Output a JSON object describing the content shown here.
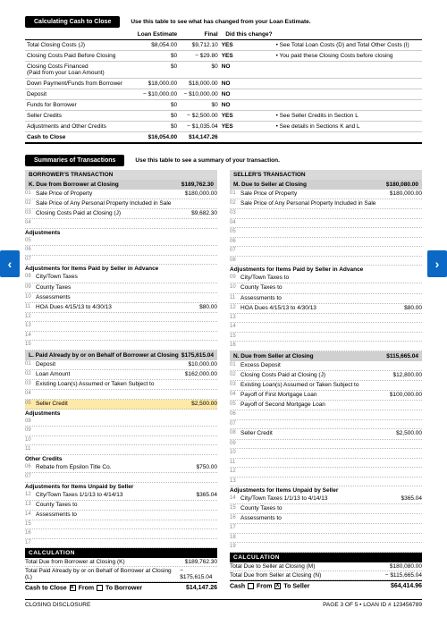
{
  "calc_cash": {
    "title": "Calculating Cash to Close",
    "subtitle": "Use this table to see what has changed from your Loan Estimate.",
    "headers": [
      "",
      "Loan Estimate",
      "Final",
      "Did this change?"
    ],
    "rows": [
      {
        "label": "Total Closing Costs (J)",
        "est": "$8,054.00",
        "final": "$9,712.10",
        "chg": "YES",
        "note": "• See Total Loan Costs (D) and Total Other Costs (I)"
      },
      {
        "label": "Closing Costs Paid Before Closing",
        "est": "$0",
        "final": "− $29.80",
        "chg": "YES",
        "note": "• You paid these Closing Costs before closing"
      },
      {
        "label": "Closing Costs Financed\n(Paid from your Loan Amount)",
        "est": "$0",
        "final": "$0",
        "chg": "NO",
        "note": ""
      },
      {
        "label": "Down Payment/Funds from Borrower",
        "est": "$18,000.00",
        "final": "$18,000.00",
        "chg": "NO",
        "note": ""
      },
      {
        "label": "Deposit",
        "est": "− $10,000.00",
        "final": "− $10,000.00",
        "chg": "NO",
        "note": ""
      },
      {
        "label": "Funds for Borrower",
        "est": "$0",
        "final": "$0",
        "chg": "NO",
        "note": ""
      },
      {
        "label": "Seller Credits",
        "est": "$0",
        "final": "− $2,500.00",
        "chg": "YES",
        "note": "• See Seller Credits in Section L"
      },
      {
        "label": "Adjustments and Other Credits",
        "est": "$0",
        "final": "− $1,035.04",
        "chg": "YES",
        "note": "• See details in Sections K and L"
      }
    ],
    "total": {
      "label": "Cash to Close",
      "est": "$16,054.00",
      "final": "$14,147.26"
    }
  },
  "summaries": {
    "title": "Summaries of Transactions",
    "subtitle": "Use this table to see a summary of your transaction.",
    "borrower": {
      "title": "BORROWER'S TRANSACTION",
      "K": {
        "title": "K. Due from Borrower at Closing",
        "amount": "$189,762.30",
        "rows": [
          {
            "n": "01",
            "lbl": "Sale Price of Property",
            "amt": "$180,000.00"
          },
          {
            "n": "02",
            "lbl": "Sale Price of Any Personal Property Included in Sale",
            "amt": ""
          },
          {
            "n": "03",
            "lbl": "Closing Costs Paid at Closing (J)",
            "amt": "$9,682.30"
          },
          {
            "n": "04",
            "lbl": "",
            "amt": ""
          }
        ],
        "adj": "Adjustments",
        "adjrows": [
          {
            "n": "05"
          },
          {
            "n": "06"
          },
          {
            "n": "07"
          }
        ],
        "adj2": "Adjustments for Items Paid by Seller in Advance",
        "adj2rows": [
          {
            "n": "08",
            "lbl": "City/Town Taxes",
            "to": "to",
            "amt": ""
          },
          {
            "n": "09",
            "lbl": "County Taxes",
            "to": "to",
            "amt": ""
          },
          {
            "n": "10",
            "lbl": "Assessments",
            "to": "to",
            "amt": ""
          },
          {
            "n": "11",
            "lbl": "HOA Dues      4/15/13  to  4/30/13",
            "to": "",
            "amt": "$80.00"
          },
          {
            "n": "12"
          },
          {
            "n": "13"
          },
          {
            "n": "14"
          },
          {
            "n": "15"
          }
        ]
      },
      "L": {
        "title": "L. Paid Already by or on Behalf of Borrower at Closing",
        "amount": "$175,615.04",
        "rows": [
          {
            "n": "01",
            "lbl": "Deposit",
            "amt": "$10,000.00"
          },
          {
            "n": "02",
            "lbl": "Loan Amount",
            "amt": "$162,000.00"
          },
          {
            "n": "03",
            "lbl": "Existing Loan(s) Assumed or Taken Subject to",
            "amt": ""
          },
          {
            "n": "04",
            "lbl": "",
            "amt": ""
          },
          {
            "n": "05",
            "lbl": "Seller Credit",
            "amt": "$2,500.00",
            "hl": true
          }
        ],
        "other": "Other Credits",
        "otherrows": [
          {
            "n": "06",
            "lbl": "Rebate from Epsilon Title Co.",
            "amt": "$750.00"
          },
          {
            "n": "07",
            "lbl": "",
            "amt": ""
          }
        ],
        "adj": "Adjustments",
        "adjrows": [
          {
            "n": "08"
          },
          {
            "n": "09"
          },
          {
            "n": "10"
          },
          {
            "n": "11"
          }
        ],
        "adj2": "Adjustments for Items Unpaid by Seller",
        "adj2rows": [
          {
            "n": "12",
            "lbl": "City/Town Taxes  1/1/13  to  4/14/13",
            "amt": "$365.04"
          },
          {
            "n": "13",
            "lbl": "County Taxes          to",
            "amt": ""
          },
          {
            "n": "14",
            "lbl": "Assessments          to",
            "amt": ""
          },
          {
            "n": "15"
          },
          {
            "n": "16"
          },
          {
            "n": "17"
          }
        ]
      },
      "calc": {
        "title": "CALCULATION",
        "r1": {
          "lbl": "Total Due from Borrower at Closing (K)",
          "amt": "$189,762.30"
        },
        "r2": {
          "lbl": "Total Paid Already by or on Behalf of Borrower at Closing (L)",
          "amt": "− $175,615.04"
        },
        "final": {
          "lbl": "Cash to Close ",
          "from": "From",
          "to": "To Borrower",
          "amt": "$14,147.26"
        }
      }
    },
    "seller": {
      "title": "SELLER'S TRANSACTION",
      "M": {
        "title": "M. Due to Seller at Closing",
        "amount": "$180,080.00",
        "rows": [
          {
            "n": "01",
            "lbl": "Sale Price of Property",
            "amt": "$180,000.00"
          },
          {
            "n": "02",
            "lbl": "Sale Price of Any Personal Property Included in Sale",
            "amt": ""
          },
          {
            "n": "03"
          },
          {
            "n": "04"
          },
          {
            "n": "05"
          },
          {
            "n": "06"
          },
          {
            "n": "07"
          },
          {
            "n": "08"
          }
        ],
        "adj2": "Adjustments for Items Paid by Seller in Advance",
        "adj2rows": [
          {
            "n": "09",
            "lbl": "City/Town Taxes          to",
            "amt": ""
          },
          {
            "n": "10",
            "lbl": "County Taxes          to",
            "amt": ""
          },
          {
            "n": "11",
            "lbl": "Assessments          to",
            "amt": ""
          },
          {
            "n": "12",
            "lbl": "HOA Dues      4/15/13  to  4/30/13",
            "amt": "$80.00"
          },
          {
            "n": "13"
          },
          {
            "n": "14"
          },
          {
            "n": "15"
          },
          {
            "n": "16"
          }
        ]
      },
      "N": {
        "title": "N. Due from Seller at Closing",
        "amount": "$115,665.04",
        "rows": [
          {
            "n": "01",
            "lbl": "Excess Deposit",
            "amt": ""
          },
          {
            "n": "02",
            "lbl": "Closing Costs Paid at Closing (J)",
            "amt": "$12,800.00"
          },
          {
            "n": "03",
            "lbl": "Existing Loan(s) Assumed or Taken Subject to",
            "amt": ""
          },
          {
            "n": "04",
            "lbl": "Payoff of First Mortgage Loan",
            "amt": "$100,000.00"
          },
          {
            "n": "05",
            "lbl": "Payoff of Second Mortgage Loan",
            "amt": ""
          },
          {
            "n": "06"
          },
          {
            "n": "07"
          },
          {
            "n": "08",
            "lbl": "Seller Credit",
            "amt": "$2,500.00"
          },
          {
            "n": "09"
          },
          {
            "n": "10"
          },
          {
            "n": "11"
          },
          {
            "n": "12"
          },
          {
            "n": "13"
          }
        ],
        "adj2": "Adjustments for Items Unpaid by Seller",
        "adj2rows": [
          {
            "n": "14",
            "lbl": "City/Town Taxes  1/1/13  to  4/14/13",
            "amt": "$365.04"
          },
          {
            "n": "15",
            "lbl": "County Taxes          to",
            "amt": ""
          },
          {
            "n": "16",
            "lbl": "Assessments          to",
            "amt": ""
          },
          {
            "n": "17"
          },
          {
            "n": "18"
          },
          {
            "n": "19"
          }
        ]
      },
      "calc": {
        "title": "CALCULATION",
        "r1": {
          "lbl": "Total Due to Seller at Closing (M)",
          "amt": "$180,080.00"
        },
        "r2": {
          "lbl": "Total Due from Seller at Closing (N)",
          "amt": "− $115,665.04"
        },
        "final": {
          "lbl": "Cash ",
          "from": "From",
          "to": "To Seller",
          "amt": "$64,414.96"
        }
      }
    }
  },
  "footer": {
    "left": "CLOSING DISCLOSURE",
    "right": "PAGE 3 OF 5 • LOAN ID # 123456789"
  }
}
